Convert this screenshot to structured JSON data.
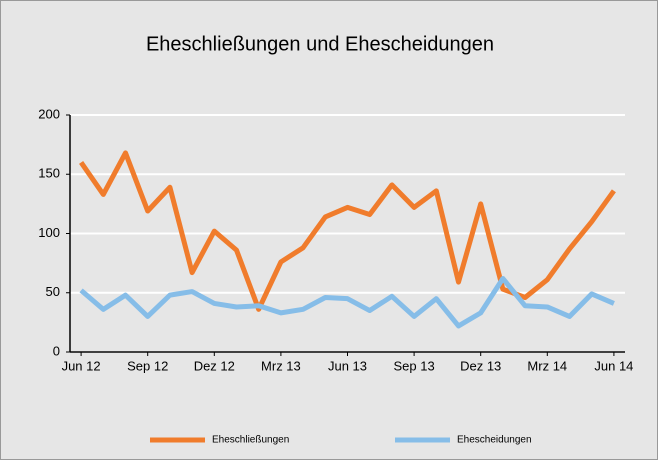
{
  "chart_data": {
    "type": "line",
    "title": "Eheschließungen und Ehescheidungen",
    "categories": [
      "Jun 12",
      null,
      null,
      "Sep 12",
      null,
      null,
      "Dez 12",
      null,
      null,
      "Mrz 13",
      null,
      null,
      "Jun 13",
      null,
      null,
      "Sep 13",
      null,
      null,
      "Dez 13",
      null,
      null,
      "Mrz 14",
      null,
      null,
      "Jun 14"
    ],
    "series": [
      {
        "name": "Eheschließungen",
        "color": "#f07c2c",
        "values": [
          160,
          133,
          168,
          119,
          139,
          67,
          102,
          86,
          36,
          76,
          88,
          114,
          122,
          116,
          141,
          122,
          136,
          59,
          125,
          53,
          46,
          61,
          87,
          110,
          136
        ]
      },
      {
        "name": "Ehescheidungen",
        "color": "#86bde8",
        "values": [
          52,
          36,
          48,
          30,
          48,
          51,
          41,
          38,
          39,
          33,
          36,
          46,
          45,
          35,
          47,
          30,
          45,
          22,
          33,
          62,
          39,
          38,
          30,
          49,
          41
        ]
      }
    ],
    "ylim": [
      0,
      200
    ],
    "yticks": [
      0,
      50,
      100,
      150,
      200
    ],
    "grid": true,
    "legend": "bottom"
  }
}
